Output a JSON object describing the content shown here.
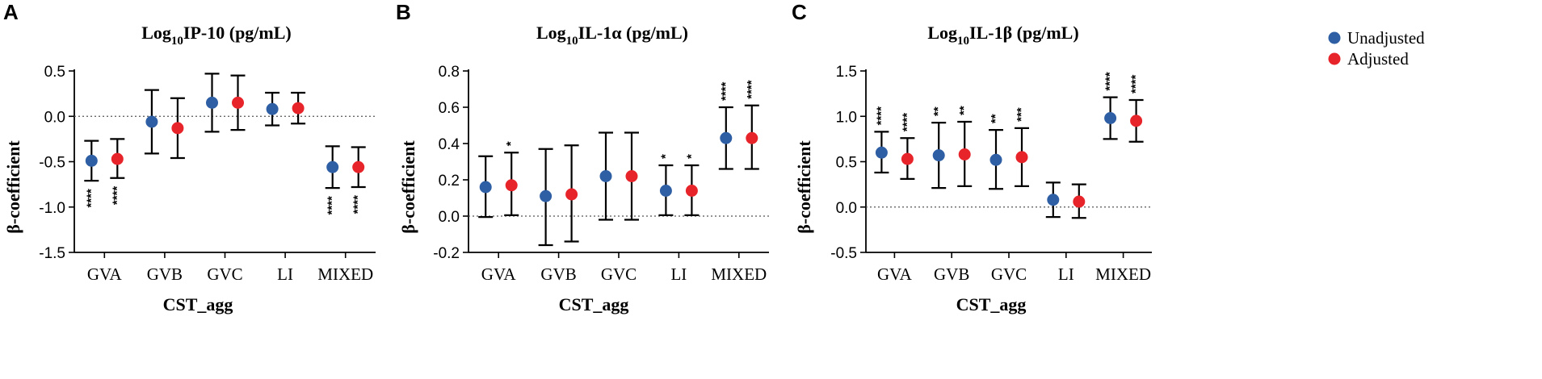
{
  "colors": {
    "unadjusted": "#2e5ea3",
    "adjusted": "#e8242b",
    "axis": "#000000"
  },
  "legend": {
    "position": "top-right",
    "items": [
      {
        "key": "unadjusted",
        "label": "Unadjusted"
      },
      {
        "key": "adjusted",
        "label": "Adjusted"
      }
    ]
  },
  "chart_data": [
    {
      "panel": "A",
      "type": "scatter",
      "title_prefix": "Log",
      "title_sub": "10",
      "title_rest": "IP-10 (pg/mL)",
      "xlabel": "CST_agg",
      "ylabel": "β-coefficient",
      "categories": [
        "GVA",
        "GVB",
        "GVC",
        "LI",
        "MIXED"
      ],
      "ylim": [
        -1.5,
        0.5
      ],
      "yticks": [
        0.5,
        0.0,
        -0.5,
        -1.0,
        -1.5
      ],
      "ytick_labels": [
        "0.5",
        "0.0",
        "-0.5",
        "-1.0",
        "-1.5"
      ],
      "reference_line": 0,
      "series": [
        {
          "name": "Unadjusted",
          "key": "unadjusted",
          "values": [
            -0.49,
            -0.06,
            0.15,
            0.08,
            -0.56
          ],
          "lower": [
            -0.71,
            -0.41,
            -0.17,
            -0.1,
            -0.79
          ],
          "upper": [
            -0.27,
            0.29,
            0.47,
            0.26,
            -0.33
          ],
          "sig": [
            "****",
            "",
            "",
            "",
            "****"
          ]
        },
        {
          "name": "Adjusted",
          "key": "adjusted",
          "values": [
            -0.47,
            -0.13,
            0.15,
            0.09,
            -0.56
          ],
          "lower": [
            -0.68,
            -0.46,
            -0.15,
            -0.08,
            -0.78
          ],
          "upper": [
            -0.25,
            0.2,
            0.45,
            0.26,
            -0.34
          ],
          "sig": [
            "****",
            "",
            "",
            "",
            "****"
          ]
        }
      ]
    },
    {
      "panel": "B",
      "type": "scatter",
      "title_prefix": "Log",
      "title_sub": "10",
      "title_rest": "IL-1α (pg/mL)",
      "xlabel": "CST_agg",
      "ylabel": "β-coefficient",
      "categories": [
        "GVA",
        "GVB",
        "GVC",
        "LI",
        "MIXED"
      ],
      "ylim": [
        -0.2,
        0.8
      ],
      "yticks": [
        0.8,
        0.6,
        0.4,
        0.2,
        0.0,
        -0.2
      ],
      "ytick_labels": [
        "0.8",
        "0.6",
        "0.4",
        "0.2",
        "0.0",
        "-0.2"
      ],
      "reference_line": 0,
      "series": [
        {
          "name": "Unadjusted",
          "key": "unadjusted",
          "values": [
            0.16,
            0.11,
            0.22,
            0.14,
            0.43
          ],
          "lower": [
            -0.005,
            -0.16,
            -0.02,
            0.005,
            0.26
          ],
          "upper": [
            0.33,
            0.37,
            0.46,
            0.28,
            0.6
          ],
          "sig": [
            "",
            "",
            "",
            "*",
            "****"
          ]
        },
        {
          "name": "Adjusted",
          "key": "adjusted",
          "values": [
            0.17,
            0.12,
            0.22,
            0.14,
            0.43
          ],
          "lower": [
            0.005,
            -0.14,
            -0.02,
            0.005,
            0.26
          ],
          "upper": [
            0.35,
            0.39,
            0.46,
            0.28,
            0.61
          ],
          "sig": [
            "*",
            "",
            "",
            "*",
            "****"
          ]
        }
      ]
    },
    {
      "panel": "C",
      "type": "scatter",
      "title_prefix": "Log",
      "title_sub": "10",
      "title_rest": "IL-1β (pg/mL)",
      "xlabel": "CST_agg",
      "ylabel": "β-coefficient",
      "categories": [
        "GVA",
        "GVB",
        "GVC",
        "LI",
        "MIXED"
      ],
      "ylim": [
        -0.5,
        1.5
      ],
      "yticks": [
        1.5,
        1.0,
        0.5,
        0.0,
        -0.5
      ],
      "ytick_labels": [
        "1.5",
        "1.0",
        "0.5",
        "0.0",
        "-0.5"
      ],
      "reference_line": 0,
      "series": [
        {
          "name": "Unadjusted",
          "key": "unadjusted",
          "values": [
            0.6,
            0.57,
            0.52,
            0.08,
            0.98
          ],
          "lower": [
            0.38,
            0.21,
            0.2,
            -0.11,
            0.75
          ],
          "upper": [
            0.83,
            0.93,
            0.85,
            0.27,
            1.21
          ],
          "sig": [
            "****",
            "**",
            "**",
            "",
            "****"
          ]
        },
        {
          "name": "Adjusted",
          "key": "adjusted",
          "values": [
            0.53,
            0.58,
            0.55,
            0.06,
            0.95
          ],
          "lower": [
            0.31,
            0.23,
            0.23,
            -0.12,
            0.72
          ],
          "upper": [
            0.76,
            0.94,
            0.87,
            0.25,
            1.18
          ],
          "sig": [
            "****",
            "**",
            "***",
            "",
            "****"
          ]
        }
      ]
    }
  ]
}
